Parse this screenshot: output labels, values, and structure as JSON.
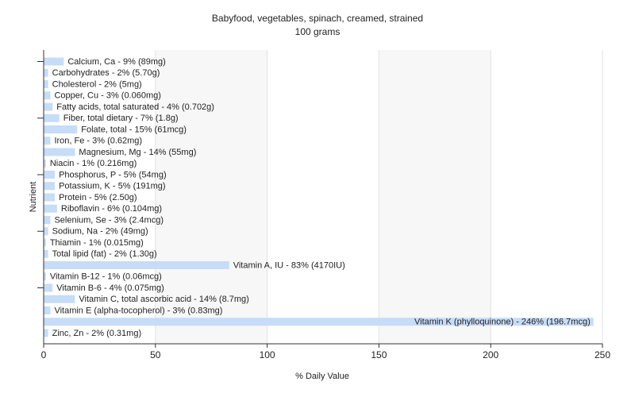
{
  "chart_data": {
    "type": "bar",
    "orientation": "horizontal",
    "title": "Babyfood, vegetables, spinach, creamed, strained",
    "subtitle": "100 grams",
    "xlabel": "% Daily Value",
    "ylabel": "Nutrient",
    "xlim": [
      0,
      250
    ],
    "xticks": [
      0,
      50,
      100,
      150,
      200,
      250
    ],
    "grid": true,
    "bar_color": "#c6dcf7",
    "categories": [
      "Calcium, Ca - 9% (89mg)",
      "Carbohydrates - 2% (5.70g)",
      "Cholesterol - 2% (5mg)",
      "Copper, Cu - 3% (0.060mg)",
      "Fatty acids, total saturated - 4% (0.702g)",
      "Fiber, total dietary - 7% (1.8g)",
      "Folate, total - 15% (61mcg)",
      "Iron, Fe - 3% (0.62mg)",
      "Magnesium, Mg - 14% (55mg)",
      "Niacin - 1% (0.216mg)",
      "Phosphorus, P - 5% (54mg)",
      "Potassium, K - 5% (191mg)",
      "Protein - 5% (2.50g)",
      "Riboflavin - 6% (0.104mg)",
      "Selenium, Se - 3% (2.4mcg)",
      "Sodium, Na - 2% (49mg)",
      "Thiamin - 1% (0.015mg)",
      "Total lipid (fat) - 2% (1.30g)",
      "Vitamin A, IU - 83% (4170IU)",
      "Vitamin B-12 - 1% (0.06mcg)",
      "Vitamin B-6 - 4% (0.075mg)",
      "Vitamin C, total ascorbic acid - 14% (8.7mg)",
      "Vitamin E (alpha-tocopherol) - 3% (0.83mg)",
      "Vitamin K (phylloquinone) - 246% (196.7mcg)",
      "Zinc, Zn - 2% (0.31mg)"
    ],
    "values": [
      9,
      2,
      2,
      3,
      4,
      7,
      15,
      3,
      14,
      1,
      5,
      5,
      5,
      6,
      3,
      2,
      1,
      2,
      83,
      1,
      4,
      14,
      3,
      246,
      2
    ]
  }
}
